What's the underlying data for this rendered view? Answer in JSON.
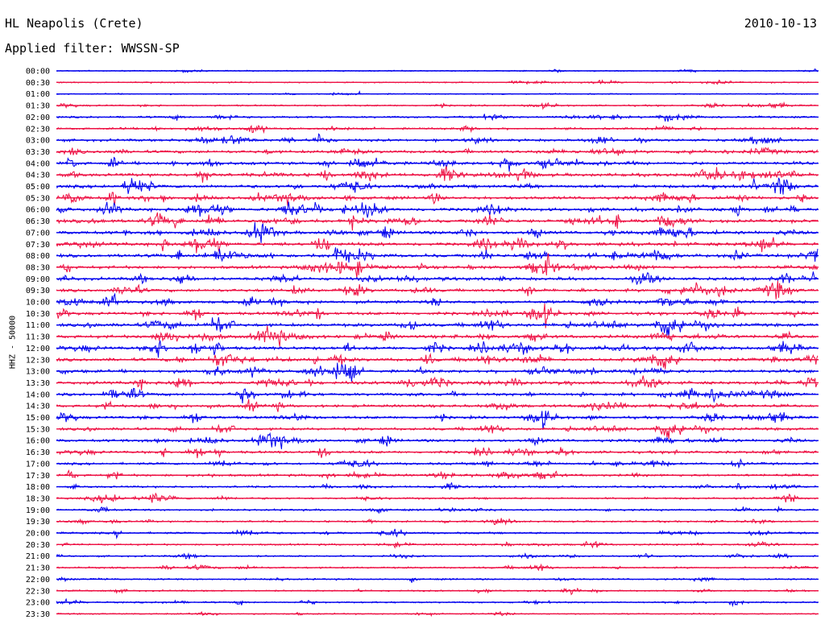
{
  "header": {
    "station": "HL Neapolis (Crete)",
    "date": "2010-10-13",
    "filter": "Applied filter: WWSSN-SP"
  },
  "chart_data": {
    "type": "line",
    "title": "HL Neapolis (Crete)",
    "ylabel": "HHZ - 50000",
    "rows": [
      "00:00",
      "00:30",
      "01:00",
      "01:30",
      "02:00",
      "02:30",
      "03:00",
      "03:30",
      "04:00",
      "04:30",
      "05:00",
      "05:30",
      "06:00",
      "06:30",
      "07:00",
      "07:30",
      "08:00",
      "08:30",
      "09:00",
      "09:30",
      "10:00",
      "10:30",
      "11:00",
      "11:30",
      "12:00",
      "12:30",
      "13:00",
      "13:30",
      "14:00",
      "14:30",
      "15:00",
      "15:30",
      "16:00",
      "16:30",
      "17:00",
      "17:30",
      "18:00",
      "18:30",
      "19:00",
      "19:30",
      "20:00",
      "20:30",
      "21:00",
      "21:30",
      "22:00",
      "22:30",
      "23:00",
      "23:30"
    ],
    "series_colors": [
      "#0000ee",
      "#ee1144"
    ],
    "row_activity": [
      0.12,
      0.18,
      0.15,
      0.3,
      0.45,
      0.5,
      0.7,
      0.85,
      0.95,
      1.0,
      0.95,
      0.95,
      1.0,
      1.0,
      1.0,
      1.0,
      1.0,
      0.95,
      0.9,
      0.9,
      0.9,
      0.9,
      1.0,
      1.0,
      1.0,
      1.0,
      0.95,
      0.9,
      0.85,
      0.8,
      0.75,
      0.75,
      0.8,
      0.7,
      0.6,
      0.65,
      0.45,
      0.45,
      0.45,
      0.4,
      0.45,
      0.4,
      0.35,
      0.35,
      0.3,
      0.3,
      0.3,
      0.2
    ]
  }
}
